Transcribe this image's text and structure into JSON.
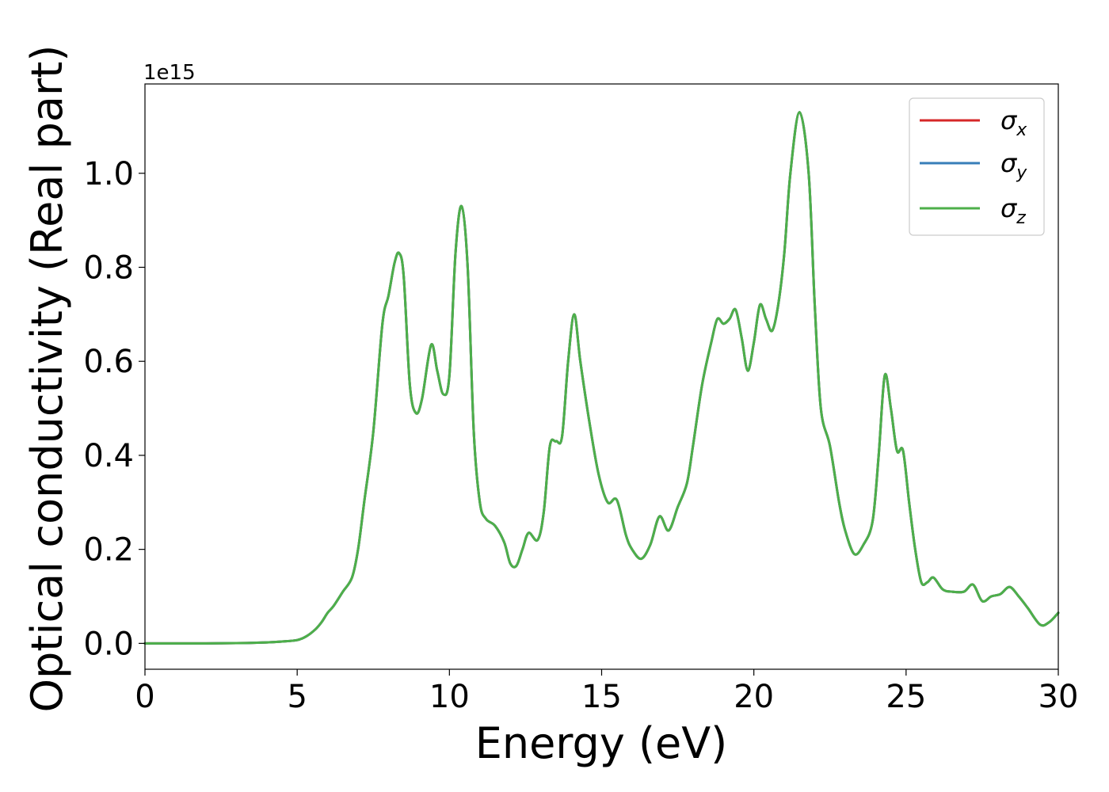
{
  "chart_data": {
    "type": "line",
    "xlabel": "Energy (eV)",
    "ylabel": "Optical conductivity (Real part)",
    "y_offset_label": "1e15",
    "y_scale": 1000000000000000.0,
    "xlim": [
      0,
      30
    ],
    "ylim": [
      -0.055,
      1.19
    ],
    "grid": false,
    "legend_position": "top-right",
    "xticks": [
      0,
      5,
      10,
      15,
      20,
      25,
      30
    ],
    "xtick_labels": [
      "0",
      "5",
      "10",
      "15",
      "20",
      "25",
      "30"
    ],
    "yticks": [
      0.0,
      0.2,
      0.4,
      0.6,
      0.8,
      1.0
    ],
    "ytick_labels": [
      "0.0",
      "0.2",
      "0.4",
      "0.6",
      "0.8",
      "1.0"
    ],
    "x": [
      0,
      1,
      2,
      3,
      4,
      4.5,
      5,
      5.3,
      5.6,
      5.8,
      6.0,
      6.2,
      6.5,
      6.8,
      7.0,
      7.2,
      7.5,
      7.8,
      8.0,
      8.2,
      8.35,
      8.5,
      8.7,
      8.9,
      9.1,
      9.4,
      9.6,
      9.8,
      10.0,
      10.2,
      10.4,
      10.6,
      10.8,
      11.0,
      11.2,
      11.5,
      11.8,
      12.0,
      12.2,
      12.4,
      12.6,
      12.9,
      13.1,
      13.3,
      13.5,
      13.7,
      13.9,
      14.1,
      14.3,
      14.6,
      14.9,
      15.2,
      15.5,
      15.8,
      16.0,
      16.3,
      16.6,
      16.9,
      17.2,
      17.5,
      17.8,
      18.0,
      18.3,
      18.6,
      18.8,
      19.0,
      19.2,
      19.4,
      19.6,
      19.8,
      20.0,
      20.2,
      20.4,
      20.6,
      20.8,
      21.0,
      21.2,
      21.5,
      21.8,
      22.0,
      22.2,
      22.5,
      22.8,
      23.0,
      23.3,
      23.6,
      23.9,
      24.1,
      24.3,
      24.5,
      24.7,
      24.9,
      25.1,
      25.3,
      25.5,
      25.7,
      25.9,
      26.2,
      26.5,
      26.9,
      27.2,
      27.5,
      27.8,
      28.1,
      28.4,
      28.7,
      29.0,
      29.4,
      29.7,
      30.0
    ],
    "series": [
      {
        "name": "σx",
        "label_base": "σ",
        "label_sub": "x",
        "color": "#d62728",
        "values": [
          0.0,
          0.0,
          0.0,
          0.0005,
          0.002,
          0.004,
          0.007,
          0.015,
          0.03,
          0.045,
          0.065,
          0.08,
          0.11,
          0.14,
          0.2,
          0.3,
          0.45,
          0.68,
          0.74,
          0.81,
          0.83,
          0.78,
          0.55,
          0.49,
          0.52,
          0.635,
          0.58,
          0.53,
          0.57,
          0.83,
          0.93,
          0.8,
          0.45,
          0.3,
          0.265,
          0.25,
          0.215,
          0.17,
          0.165,
          0.2,
          0.235,
          0.22,
          0.28,
          0.42,
          0.43,
          0.44,
          0.6,
          0.7,
          0.6,
          0.47,
          0.36,
          0.3,
          0.305,
          0.23,
          0.2,
          0.18,
          0.21,
          0.27,
          0.24,
          0.29,
          0.34,
          0.42,
          0.55,
          0.64,
          0.69,
          0.68,
          0.69,
          0.71,
          0.65,
          0.58,
          0.64,
          0.72,
          0.69,
          0.665,
          0.72,
          0.83,
          1.0,
          1.13,
          1.0,
          0.72,
          0.5,
          0.42,
          0.3,
          0.24,
          0.19,
          0.21,
          0.26,
          0.4,
          0.57,
          0.5,
          0.41,
          0.41,
          0.3,
          0.2,
          0.13,
          0.13,
          0.14,
          0.115,
          0.11,
          0.11,
          0.125,
          0.09,
          0.1,
          0.105,
          0.12,
          0.1,
          0.075,
          0.04,
          0.045,
          0.065
        ]
      },
      {
        "name": "σy",
        "label_base": "σ",
        "label_sub": "y",
        "color": "#377eb8",
        "values": [
          0.0,
          0.0,
          0.0,
          0.0005,
          0.002,
          0.004,
          0.007,
          0.015,
          0.03,
          0.045,
          0.065,
          0.08,
          0.11,
          0.14,
          0.2,
          0.3,
          0.45,
          0.68,
          0.74,
          0.81,
          0.83,
          0.78,
          0.55,
          0.49,
          0.52,
          0.635,
          0.58,
          0.53,
          0.57,
          0.83,
          0.93,
          0.8,
          0.45,
          0.3,
          0.265,
          0.25,
          0.215,
          0.17,
          0.165,
          0.2,
          0.235,
          0.22,
          0.28,
          0.42,
          0.43,
          0.44,
          0.6,
          0.7,
          0.6,
          0.47,
          0.36,
          0.3,
          0.305,
          0.23,
          0.2,
          0.18,
          0.21,
          0.27,
          0.24,
          0.29,
          0.34,
          0.42,
          0.55,
          0.64,
          0.69,
          0.68,
          0.69,
          0.71,
          0.65,
          0.58,
          0.64,
          0.72,
          0.69,
          0.665,
          0.72,
          0.83,
          1.0,
          1.13,
          1.0,
          0.72,
          0.5,
          0.42,
          0.3,
          0.24,
          0.19,
          0.21,
          0.26,
          0.4,
          0.57,
          0.5,
          0.41,
          0.41,
          0.3,
          0.2,
          0.13,
          0.13,
          0.14,
          0.115,
          0.11,
          0.11,
          0.125,
          0.09,
          0.1,
          0.105,
          0.12,
          0.1,
          0.075,
          0.04,
          0.045,
          0.065
        ]
      },
      {
        "name": "σz",
        "label_base": "σ",
        "label_sub": "z",
        "color": "#4daf4a",
        "values": [
          0.0,
          0.0,
          0.0,
          0.0005,
          0.002,
          0.004,
          0.007,
          0.015,
          0.03,
          0.045,
          0.065,
          0.08,
          0.11,
          0.14,
          0.2,
          0.3,
          0.45,
          0.68,
          0.74,
          0.81,
          0.83,
          0.78,
          0.55,
          0.49,
          0.52,
          0.635,
          0.58,
          0.53,
          0.57,
          0.83,
          0.93,
          0.8,
          0.45,
          0.3,
          0.265,
          0.25,
          0.215,
          0.17,
          0.165,
          0.2,
          0.235,
          0.22,
          0.28,
          0.42,
          0.43,
          0.44,
          0.6,
          0.7,
          0.6,
          0.47,
          0.36,
          0.3,
          0.305,
          0.23,
          0.2,
          0.18,
          0.21,
          0.27,
          0.24,
          0.29,
          0.34,
          0.42,
          0.55,
          0.64,
          0.69,
          0.68,
          0.69,
          0.71,
          0.65,
          0.58,
          0.64,
          0.72,
          0.69,
          0.665,
          0.72,
          0.83,
          1.0,
          1.13,
          1.0,
          0.72,
          0.5,
          0.42,
          0.3,
          0.24,
          0.19,
          0.21,
          0.26,
          0.4,
          0.57,
          0.5,
          0.41,
          0.41,
          0.3,
          0.2,
          0.13,
          0.13,
          0.14,
          0.115,
          0.11,
          0.11,
          0.125,
          0.09,
          0.1,
          0.105,
          0.12,
          0.1,
          0.075,
          0.04,
          0.045,
          0.065
        ]
      }
    ]
  }
}
